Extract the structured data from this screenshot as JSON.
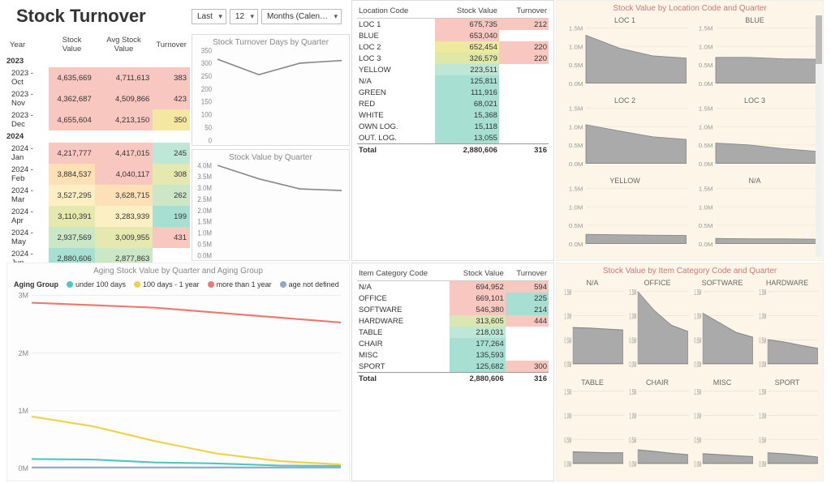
{
  "title": "Stock Turnover",
  "controls": {
    "period_mode": "Last",
    "period_n": "12",
    "period_unit": "Months (Calen…"
  },
  "matrix": {
    "headers": [
      "Year",
      "Stock Value",
      "Avg Stock Value",
      "Turnover"
    ],
    "groups": [
      {
        "year": "2023",
        "rows": [
          {
            "label": "2023 - Oct",
            "sv": "4,635,669",
            "avg": "4,711,613",
            "to": "383",
            "sv_bg": "#f8c7bf",
            "avg_bg": "#f8c7bf",
            "to_bg": "#f8c7bf"
          },
          {
            "label": "2023 - Nov",
            "sv": "4,362,687",
            "avg": "4,509,866",
            "to": "423",
            "sv_bg": "#f8c7bf",
            "avg_bg": "#f8c7bf",
            "to_bg": "#f8c7bf"
          },
          {
            "label": "2023 - Dec",
            "sv": "4,655,604",
            "avg": "4,213,150",
            "to": "350",
            "sv_bg": "#f8c7bf",
            "avg_bg": "#f8c7bf",
            "to_bg": "#f4e7a1"
          }
        ]
      },
      {
        "year": "2024",
        "rows": [
          {
            "label": "2024 - Jan",
            "sv": "4,217,777",
            "avg": "4,417,015",
            "to": "245",
            "sv_bg": "#f8c7bf",
            "avg_bg": "#f8c7bf",
            "to_bg": "#bfe7d7"
          },
          {
            "label": "2024 - Feb",
            "sv": "3,884,537",
            "avg": "4,040,117",
            "to": "308",
            "sv_bg": "#fde0b5",
            "avg_bg": "#f8c7bf",
            "to_bg": "#e5e9b0"
          },
          {
            "label": "2024 - Mar",
            "sv": "3,527,295",
            "avg": "3,628,715",
            "to": "262",
            "sv_bg": "#fdefc4",
            "avg_bg": "#fde0b5",
            "to_bg": "#cbe7c6"
          },
          {
            "label": "2024 - Apr",
            "sv": "3,110,391",
            "avg": "3,283,939",
            "to": "199",
            "sv_bg": "#e5e9b0",
            "avg_bg": "#fdefc4",
            "to_bg": "#a7e0d2"
          },
          {
            "label": "2024 - May",
            "sv": "2,937,569",
            "avg": "3,009,955",
            "to": "431",
            "sv_bg": "#cbe7c6",
            "avg_bg": "#e5e9b0",
            "to_bg": "#f8c7bf"
          },
          {
            "label": "2024 - Jun",
            "sv": "2,880,606",
            "avg": "2,877,863",
            "to": "",
            "sv_bg": "#a7e0d2",
            "avg_bg": "#cbe7c6",
            "to_bg": ""
          }
        ]
      }
    ]
  },
  "turnover_days_chart": {
    "title": "Stock Turnover Days by Quarter",
    "yticks": [
      "350",
      "300",
      "250",
      "200",
      "150",
      "100",
      "50",
      "0"
    ],
    "ylim": [
      0,
      350
    ],
    "points": [
      [
        0,
        315
      ],
      [
        1,
        255
      ],
      [
        2,
        300
      ],
      [
        3,
        310
      ]
    ],
    "stroke": "#888888"
  },
  "stockvalue_chart": {
    "title": "Stock Value by Quarter",
    "yticks": [
      "4.0M",
      "3.5M",
      "3.0M",
      "2.5M",
      "2.0M",
      "1.5M",
      "1.0M",
      "0.5M",
      "0.0M"
    ],
    "ylim": [
      0,
      4.0
    ],
    "points": [
      [
        0,
        4.0
      ],
      [
        1,
        3.4
      ],
      [
        2,
        2.95
      ],
      [
        3,
        2.88
      ]
    ],
    "stroke": "#888888"
  },
  "location_table": {
    "headers": [
      "Location Code",
      "Stock Value",
      "Turnover"
    ],
    "rows": [
      {
        "c0": "LOC 1",
        "c1": "675,735",
        "c2": "212",
        "bg1": "#f8c7bf",
        "bg2": "#f8c7bf"
      },
      {
        "c0": "BLUE",
        "c1": "653,040",
        "c2": "",
        "bg1": "#f8c7bf",
        "bg2": ""
      },
      {
        "c0": "LOC 2",
        "c1": "652,454",
        "c2": "220",
        "bg1": "#eeea9d",
        "bg2": "#f8c7bf"
      },
      {
        "c0": "LOC 3",
        "c1": "326,579",
        "c2": "220",
        "bg1": "#e0e8a8",
        "bg2": "#f8c7bf"
      },
      {
        "c0": "YELLOW",
        "c1": "223,511",
        "c2": "",
        "bg1": "#bfe7d7",
        "bg2": ""
      },
      {
        "c0": "N/A",
        "c1": "125,811",
        "c2": "",
        "bg1": "#a7e0d2",
        "bg2": ""
      },
      {
        "c0": "GREEN",
        "c1": "111,916",
        "c2": "",
        "bg1": "#a7e0d2",
        "bg2": ""
      },
      {
        "c0": "RED",
        "c1": "68,021",
        "c2": "",
        "bg1": "#a7e0d2",
        "bg2": ""
      },
      {
        "c0": "WHITE",
        "c1": "15,368",
        "c2": "",
        "bg1": "#a7e0d2",
        "bg2": ""
      },
      {
        "c0": "OWN LOG.",
        "c1": "15,118",
        "c2": "",
        "bg1": "#a7e0d2",
        "bg2": ""
      },
      {
        "c0": "OUT. LOG.",
        "c1": "13,055",
        "c2": "",
        "bg1": "#a7e0d2",
        "bg2": ""
      }
    ],
    "total": {
      "c0": "Total",
      "c1": "2,880,606",
      "c2": "316"
    }
  },
  "location_sm": {
    "title": "Stock Value by Location Code and Quarter",
    "yticks": [
      "1.5M",
      "1.0M",
      "0.5M",
      "0.0M"
    ],
    "ylim": [
      0,
      1.5
    ],
    "fill": "#aaaaaa",
    "stroke": "#888888",
    "panels": [
      {
        "name": "LOC 1",
        "vals": [
          1.3,
          0.95,
          0.74,
          0.68
        ]
      },
      {
        "name": "BLUE",
        "vals": [
          0.7,
          0.7,
          0.66,
          0.65
        ]
      },
      {
        "name": "LOC 2",
        "vals": [
          1.05,
          0.88,
          0.72,
          0.65
        ]
      },
      {
        "name": "LOC 3",
        "vals": [
          0.55,
          0.5,
          0.4,
          0.33
        ]
      },
      {
        "name": "YELLOW",
        "vals": [
          0.25,
          0.24,
          0.23,
          0.22
        ]
      },
      {
        "name": "N/A",
        "vals": [
          0.14,
          0.13,
          0.13,
          0.12
        ]
      }
    ]
  },
  "aging_chart": {
    "title": "Aging Stock Value by Quarter and Aging Group",
    "legend_title": "Aging Group",
    "series": [
      {
        "name": "under 100 days",
        "color": "#4fc7c1",
        "vals": [
          0.19,
          0.18,
          0.12,
          0.1,
          0.06,
          0.05
        ]
      },
      {
        "name": "100 days - 1 year",
        "color": "#f0d24a",
        "vals": [
          1.05,
          0.85,
          0.55,
          0.3,
          0.15,
          0.08
        ]
      },
      {
        "name": "more than 1 year",
        "color": "#e87a6f",
        "vals": [
          3.35,
          3.3,
          3.25,
          3.15,
          3.05,
          2.95
        ]
      },
      {
        "name": "age not defined",
        "color": "#8fa8c8",
        "vals": [
          0.02,
          0.02,
          0.02,
          0.02,
          0.02,
          0.02
        ]
      }
    ],
    "ylim": [
      0,
      3.5
    ],
    "yticks": [
      "3M",
      "2M",
      "1M",
      "0M"
    ]
  },
  "category_table": {
    "headers": [
      "Item Category Code",
      "Stock Value",
      "Turnover"
    ],
    "rows": [
      {
        "c0": "N/A",
        "c1": "694,952",
        "c2": "594",
        "bg1": "#f8c7bf",
        "bg2": "#f8c7bf"
      },
      {
        "c0": "OFFICE",
        "c1": "669,101",
        "c2": "225",
        "bg1": "#f8c7bf",
        "bg2": "#a7e0d2"
      },
      {
        "c0": "SOFTWARE",
        "c1": "546,380",
        "c2": "214",
        "bg1": "#f8c7bf",
        "bg2": "#a7e0d2"
      },
      {
        "c0": "HARDWARE",
        "c1": "313,605",
        "c2": "444",
        "bg1": "#d9e7b2",
        "bg2": "#f8c7bf"
      },
      {
        "c0": "TABLE",
        "c1": "218,031",
        "c2": "",
        "bg1": "#bfe7d7",
        "bg2": ""
      },
      {
        "c0": "CHAIR",
        "c1": "177,264",
        "c2": "",
        "bg1": "#a7e0d2",
        "bg2": ""
      },
      {
        "c0": "MISC",
        "c1": "135,593",
        "c2": "",
        "bg1": "#a7e0d2",
        "bg2": ""
      },
      {
        "c0": "SPORT",
        "c1": "125,682",
        "c2": "300",
        "bg1": "#a7e0d2",
        "bg2": "#f8c7bf"
      }
    ],
    "total": {
      "c0": "Total",
      "c1": "2,880,606",
      "c2": "316"
    }
  },
  "category_sm": {
    "title": "Stock Value by Item Category Code and Quarter",
    "yticks": [
      "1.5M",
      "1.0M",
      "0.5M",
      "0.0M"
    ],
    "ylim": [
      0,
      1.5
    ],
    "fill": "#aaaaaa",
    "stroke": "#888888",
    "panels": [
      {
        "name": "N/A",
        "vals": [
          0.75,
          0.74,
          0.72,
          0.7
        ]
      },
      {
        "name": "OFFICE",
        "vals": [
          1.6,
          1.1,
          0.8,
          0.67
        ]
      },
      {
        "name": "SOFTWARE",
        "vals": [
          1.05,
          0.85,
          0.65,
          0.55
        ]
      },
      {
        "name": "HARDWARE",
        "vals": [
          0.5,
          0.45,
          0.38,
          0.32
        ]
      },
      {
        "name": "TABLE",
        "vals": [
          0.24,
          0.23,
          0.22,
          0.22
        ]
      },
      {
        "name": "CHAIR",
        "vals": [
          0.28,
          0.25,
          0.21,
          0.18
        ]
      },
      {
        "name": "MISC",
        "vals": [
          0.2,
          0.18,
          0.16,
          0.14
        ]
      },
      {
        "name": "SPORT",
        "vals": [
          0.22,
          0.2,
          0.17,
          0.13
        ]
      }
    ]
  }
}
